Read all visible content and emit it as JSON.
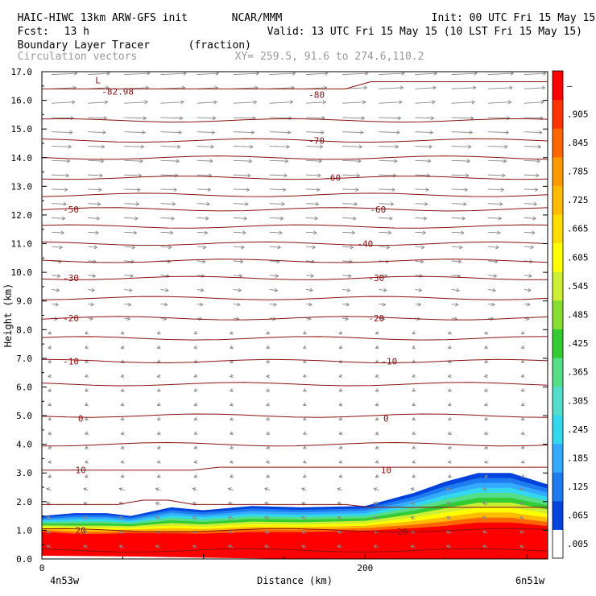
{
  "header": {
    "model": "HAIC-HIWC 13km ARW-GFS init",
    "org": "NCAR/MMM",
    "init": "Init: 00 UTC Fri 15 May 15",
    "fcst_label": "Fcst:",
    "fcst_value": "13 h",
    "valid": "Valid: 13 UTC Fri 15 May 15 (10 LST Fri 15 May 15)",
    "field_name": "Boundary Layer Tracer",
    "field_units": "(fraction)",
    "vectors_label": "Circulation vectors",
    "xy_range": "XY= 259.5, 91.6 to 274.6,110.2"
  },
  "colors": {
    "contour": "#8b1010",
    "vector": "#888888",
    "axis": "#000000"
  },
  "chart_data": {
    "type": "heatmap",
    "title": "Boundary Layer Tracer",
    "units": "(fraction)",
    "xlabel": "Distance (km)",
    "ylabel": "Height (km)",
    "xlim": [
      0,
      313
    ],
    "ylim": [
      0,
      17
    ],
    "x_ticks": [
      {
        "value": 0,
        "label": "0"
      },
      {
        "value": 200,
        "label": "200"
      }
    ],
    "y_ticks": [
      "0.0",
      "1.0",
      "2.0",
      "3.0",
      "4.0",
      "5.0",
      "6.0",
      "7.0",
      "8.0",
      "9.0",
      "10.0",
      "11.0",
      "12.0",
      "13.0",
      "14.0",
      "15.0",
      "16.0",
      "17.0"
    ],
    "x_endpoint_labels": {
      "left": "4n53w",
      "right": "6n51w"
    },
    "colorbar": {
      "labels": [
        ".005",
        ".065",
        ".125",
        ".185",
        ".245",
        ".305",
        ".365",
        ".425",
        ".485",
        ".545",
        ".605",
        ".665",
        ".725",
        ".785",
        ".845",
        ".905",
        "–"
      ],
      "colors": [
        "#ffffff",
        "#0044dd",
        "#1e7bf0",
        "#33aaff",
        "#33d8ee",
        "#55ddcc",
        "#55dd88",
        "#33cc33",
        "#88dd33",
        "#ccee33",
        "#ffff00",
        "#ffdd00",
        "#ffbb00",
        "#ff9900",
        "#ff6600",
        "#ff3300",
        "#ff0000"
      ]
    },
    "tracer_profile": {
      "x_km": [
        0,
        20,
        40,
        55,
        80,
        100,
        130,
        160,
        200,
        230,
        250,
        270,
        290,
        313
      ],
      "top_km": [
        1.5,
        1.6,
        1.6,
        1.5,
        1.8,
        1.7,
        1.85,
        1.8,
        1.85,
        2.3,
        2.7,
        3.0,
        3.0,
        2.6
      ],
      "red_top_km": [
        0.9,
        0.8,
        0.8,
        0.85,
        0.8,
        0.8,
        0.85,
        0.85,
        0.9,
        0.95,
        1.0,
        1.1,
        1.1,
        1.0
      ]
    },
    "temperature_contours": [
      {
        "label": "-80",
        "height_km": 16.2,
        "label_x_km": 170
      },
      {
        "label": "-70",
        "height_km": 14.6,
        "label_x_km": 170
      },
      {
        "label": "-60",
        "height_km": 13.3,
        "label_x_km": 180
      },
      {
        "label": "-60",
        "height_km": 12.2,
        "label_x_km": 208
      },
      {
        "label": "-50",
        "height_km": 12.2,
        "label_x_km": 18
      },
      {
        "label": "-40",
        "height_km": 11.0,
        "label_x_km": 200
      },
      {
        "label": "-30",
        "height_km": 9.8,
        "label_x_km": 18
      },
      {
        "label": "-30",
        "height_km": 9.8,
        "label_x_km": 207
      },
      {
        "label": "-20",
        "height_km": 8.4,
        "label_x_km": 18
      },
      {
        "label": "-20",
        "height_km": 8.4,
        "label_x_km": 207
      },
      {
        "label": "-10",
        "height_km": 6.9,
        "label_x_km": 18
      },
      {
        "label": "-10",
        "height_km": 6.9,
        "label_x_km": 215
      },
      {
        "label": "0",
        "height_km": 4.9,
        "label_x_km": 24
      },
      {
        "label": "0",
        "height_km": 4.9,
        "label_x_km": 213
      },
      {
        "label": "10",
        "height_km": 3.1,
        "label_x_km": 24
      },
      {
        "label": "10",
        "height_km": 3.1,
        "label_x_km": 213
      },
      {
        "label": "20",
        "height_km": 1.0,
        "label_x_km": 24
      },
      {
        "label": "20",
        "height_km": 0.95,
        "label_x_km": 223
      }
    ],
    "min_annotation": {
      "label": "L",
      "value_label": "-82.98",
      "x_km": 40,
      "height_km": 16.7
    },
    "contour_heights_km": [
      16.4,
      15.3,
      14.6,
      14.0,
      13.3,
      12.7,
      12.2,
      11.6,
      11.0,
      10.4,
      9.8,
      9.1,
      8.4,
      7.7,
      6.9,
      6.1,
      5.0,
      4.0,
      3.1,
      1.9,
      1.0,
      0.3
    ]
  }
}
